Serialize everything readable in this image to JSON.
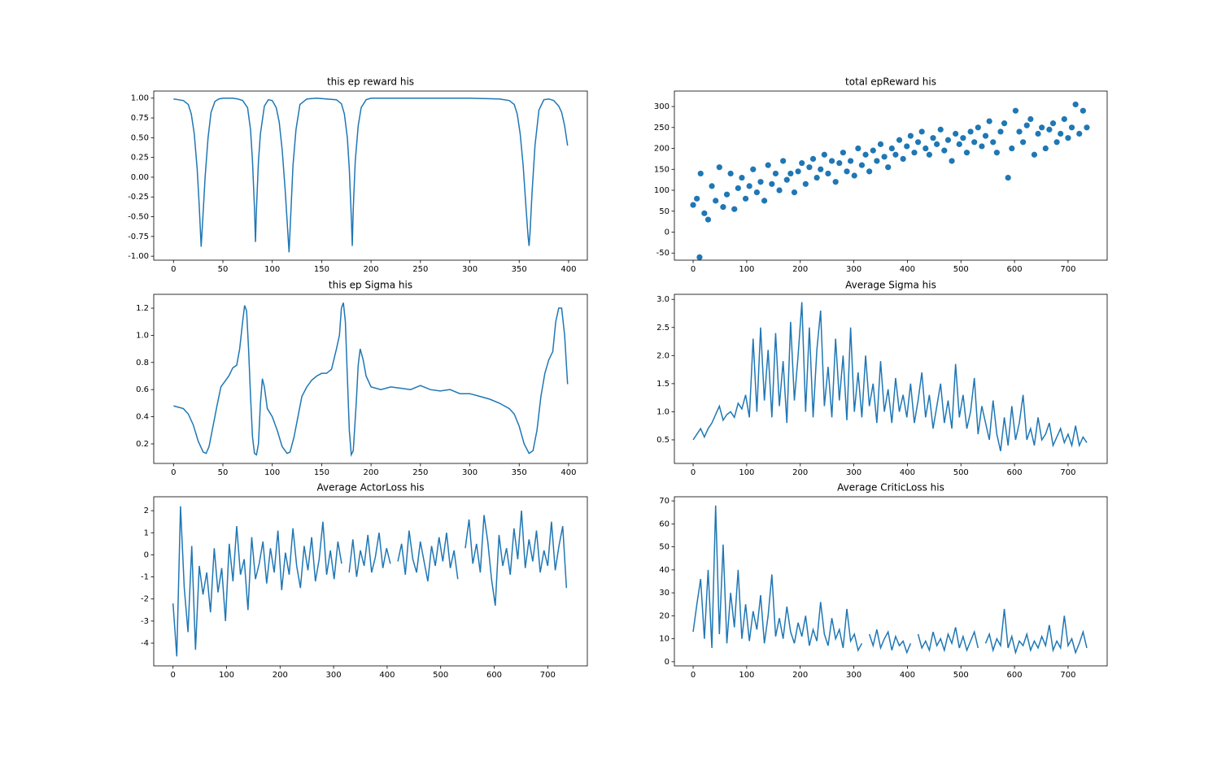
{
  "chart_data": [
    {
      "type": "line",
      "title": "this ep reward his",
      "color": "#1f77b4",
      "x": [
        0,
        5,
        10,
        15,
        18,
        21,
        24,
        26,
        28,
        30,
        32,
        35,
        38,
        42,
        46,
        50,
        55,
        60,
        65,
        70,
        75,
        78,
        80,
        82,
        83,
        84,
        86,
        88,
        92,
        96,
        100,
        104,
        107,
        110,
        113,
        115,
        117,
        119,
        121,
        124,
        128,
        135,
        145,
        155,
        165,
        170,
        173,
        176,
        178,
        180,
        181,
        182,
        184,
        187,
        190,
        195,
        200,
        220,
        250,
        300,
        330,
        340,
        345,
        348,
        351,
        354,
        357,
        359,
        360,
        361,
        363,
        366,
        370,
        375,
        380,
        385,
        390,
        393,
        396,
        399
      ],
      "values": [
        0.99,
        0.98,
        0.97,
        0.92,
        0.8,
        0.55,
        0.1,
        -0.35,
        -0.88,
        -0.45,
        0.0,
        0.5,
        0.82,
        0.96,
        0.99,
        1.0,
        1.0,
        1.0,
        0.99,
        0.97,
        0.88,
        0.6,
        0.2,
        -0.4,
        -0.82,
        -0.4,
        0.2,
        0.55,
        0.9,
        0.98,
        0.97,
        0.88,
        0.7,
        0.35,
        -0.15,
        -0.55,
        -0.95,
        -0.4,
        0.15,
        0.6,
        0.92,
        0.99,
        1.0,
        0.99,
        0.98,
        0.93,
        0.8,
        0.5,
        0.1,
        -0.5,
        -0.87,
        -0.4,
        0.2,
        0.65,
        0.88,
        0.98,
        1.0,
        1.0,
        1.0,
        1.0,
        0.99,
        0.97,
        0.92,
        0.8,
        0.55,
        0.15,
        -0.4,
        -0.75,
        -0.87,
        -0.7,
        -0.2,
        0.4,
        0.85,
        0.98,
        0.99,
        0.97,
        0.9,
        0.82,
        0.65,
        0.4
      ],
      "xlim": [
        -20,
        419
      ],
      "ylim": [
        -1.05,
        1.09
      ],
      "xticks": [
        0,
        50,
        100,
        150,
        200,
        250,
        300,
        350,
        400
      ],
      "yticks": [
        {
          "value": -1,
          "label": "-1.00"
        },
        -0.75,
        {
          "value": -0.5,
          "label": "-0.50"
        },
        -0.25,
        {
          "value": 0,
          "label": "0.00"
        },
        0.25,
        {
          "value": 0.5,
          "label": "0.50"
        },
        0.75,
        {
          "value": 1,
          "label": "1.00"
        }
      ]
    },
    {
      "type": "scatter",
      "title": "total epReward his",
      "color": "#1f77b4",
      "x": [
        0,
        7,
        14,
        21,
        28,
        35,
        42,
        49,
        56,
        63,
        70,
        77,
        84,
        91,
        98,
        105,
        112,
        119,
        126,
        133,
        140,
        147,
        154,
        161,
        168,
        175,
        182,
        189,
        196,
        203,
        210,
        217,
        224,
        231,
        238,
        245,
        252,
        259,
        266,
        273,
        280,
        287,
        294,
        301,
        308,
        315,
        322,
        329,
        336,
        343,
        350,
        357,
        364,
        371,
        378,
        385,
        392,
        399,
        406,
        413,
        420,
        427,
        434,
        441,
        448,
        455,
        462,
        469,
        476,
        483,
        490,
        497,
        504,
        511,
        518,
        525,
        532,
        539,
        546,
        553,
        560,
        567,
        574,
        581,
        588,
        595,
        602,
        609,
        616,
        623,
        630,
        637,
        644,
        651,
        658,
        665,
        672,
        679,
        686,
        693,
        700,
        707,
        714,
        721,
        728,
        735,
        12
      ],
      "values": [
        65,
        80,
        140,
        45,
        30,
        110,
        75,
        155,
        60,
        90,
        140,
        55,
        105,
        130,
        80,
        110,
        150,
        95,
        120,
        75,
        160,
        115,
        140,
        100,
        170,
        125,
        140,
        95,
        145,
        165,
        115,
        155,
        175,
        130,
        150,
        185,
        140,
        170,
        120,
        165,
        190,
        145,
        170,
        135,
        200,
        160,
        185,
        145,
        195,
        170,
        210,
        180,
        155,
        200,
        185,
        220,
        175,
        205,
        230,
        190,
        215,
        240,
        200,
        185,
        225,
        210,
        245,
        195,
        220,
        170,
        235,
        210,
        225,
        190,
        240,
        215,
        250,
        205,
        230,
        265,
        215,
        190,
        240,
        260,
        130,
        200,
        290,
        240,
        215,
        255,
        270,
        185,
        235,
        250,
        200,
        245,
        260,
        215,
        235,
        270,
        225,
        250,
        305,
        235,
        290,
        250,
        -60
      ],
      "xlim": [
        -35,
        773
      ],
      "ylim": [
        -67,
        337
      ],
      "xticks": [
        0,
        100,
        200,
        300,
        400,
        500,
        600,
        700
      ],
      "yticks": [
        -50,
        0,
        50,
        100,
        150,
        200,
        250,
        300
      ]
    },
    {
      "type": "line",
      "title": "this ep Sigma his",
      "color": "#1f77b4",
      "x": [
        0,
        5,
        10,
        15,
        20,
        25,
        30,
        33,
        36,
        40,
        44,
        48,
        52,
        56,
        60,
        64,
        67,
        70,
        72,
        74,
        76,
        78,
        80,
        82,
        84,
        86,
        88,
        90,
        92,
        95,
        100,
        105,
        110,
        115,
        118,
        122,
        126,
        130,
        135,
        140,
        145,
        150,
        155,
        160,
        165,
        168,
        170,
        172,
        174,
        176,
        178,
        180,
        182,
        185,
        187,
        189,
        192,
        195,
        200,
        210,
        220,
        230,
        240,
        250,
        260,
        270,
        280,
        290,
        300,
        310,
        320,
        330,
        340,
        345,
        350,
        355,
        360,
        364,
        368,
        372,
        376,
        380,
        384,
        387,
        390,
        393,
        396,
        399
      ],
      "values": [
        0.48,
        0.47,
        0.46,
        0.42,
        0.34,
        0.22,
        0.14,
        0.13,
        0.18,
        0.33,
        0.48,
        0.62,
        0.66,
        0.7,
        0.76,
        0.78,
        0.9,
        1.1,
        1.22,
        1.18,
        0.9,
        0.55,
        0.25,
        0.13,
        0.12,
        0.2,
        0.5,
        0.68,
        0.62,
        0.46,
        0.4,
        0.3,
        0.18,
        0.13,
        0.14,
        0.25,
        0.4,
        0.55,
        0.62,
        0.67,
        0.7,
        0.72,
        0.72,
        0.75,
        0.9,
        1.0,
        1.2,
        1.24,
        1.1,
        0.7,
        0.3,
        0.12,
        0.15,
        0.5,
        0.78,
        0.9,
        0.82,
        0.7,
        0.62,
        0.6,
        0.62,
        0.61,
        0.6,
        0.63,
        0.6,
        0.59,
        0.6,
        0.57,
        0.57,
        0.55,
        0.53,
        0.5,
        0.46,
        0.42,
        0.33,
        0.2,
        0.13,
        0.15,
        0.3,
        0.55,
        0.72,
        0.82,
        0.88,
        1.1,
        1.2,
        1.2,
        1.0,
        0.64
      ],
      "xlim": [
        -20,
        419
      ],
      "ylim": [
        0.056,
        1.302
      ],
      "xticks": [
        0,
        50,
        100,
        150,
        200,
        250,
        300,
        350,
        400
      ],
      "yticks": [
        0.2,
        0.4,
        0.6,
        0.8,
        {
          "value": 1,
          "label": "1.0"
        },
        1.2
      ]
    },
    {
      "type": "line",
      "title": "Average Sigma his",
      "color": "#1f77b4",
      "x": [
        0,
        7,
        14,
        21,
        28,
        35,
        42,
        49,
        56,
        63,
        70,
        77,
        84,
        91,
        98,
        105,
        112,
        119,
        126,
        133,
        140,
        147,
        154,
        161,
        168,
        175,
        182,
        189,
        196,
        203,
        210,
        217,
        224,
        231,
        238,
        245,
        252,
        259,
        266,
        273,
        280,
        287,
        294,
        301,
        308,
        315,
        322,
        329,
        336,
        343,
        350,
        357,
        364,
        371,
        378,
        385,
        392,
        399,
        406,
        413,
        420,
        427,
        434,
        441,
        448,
        455,
        462,
        469,
        476,
        483,
        490,
        497,
        504,
        511,
        518,
        525,
        532,
        539,
        546,
        553,
        560,
        567,
        574,
        581,
        588,
        595,
        602,
        609,
        616,
        623,
        630,
        637,
        644,
        651,
        658,
        665,
        672,
        679,
        686,
        693,
        700,
        707,
        714,
        721,
        728,
        735
      ],
      "values": [
        0.5,
        0.6,
        0.7,
        0.55,
        0.7,
        0.8,
        0.95,
        1.1,
        0.85,
        0.95,
        1.0,
        0.9,
        1.15,
        1.05,
        1.3,
        0.9,
        2.3,
        1.0,
        2.5,
        1.2,
        2.1,
        0.9,
        2.4,
        1.1,
        1.9,
        0.8,
        2.6,
        1.2,
        2.0,
        2.95,
        1.0,
        2.5,
        0.9,
        2.1,
        2.8,
        1.1,
        1.8,
        0.9,
        2.3,
        1.2,
        2.0,
        0.85,
        2.5,
        1.0,
        1.7,
        0.9,
        2.0,
        1.1,
        1.5,
        0.8,
        1.9,
        1.0,
        1.4,
        0.8,
        1.6,
        1.0,
        1.3,
        0.9,
        1.5,
        0.8,
        1.2,
        1.7,
        0.9,
        1.3,
        0.7,
        1.1,
        1.5,
        0.8,
        1.2,
        0.7,
        1.85,
        0.9,
        1.3,
        0.7,
        1.0,
        1.6,
        0.6,
        1.1,
        0.8,
        0.5,
        1.2,
        0.6,
        0.3,
        0.9,
        0.4,
        1.1,
        0.5,
        0.8,
        1.3,
        0.5,
        0.7,
        0.4,
        0.9,
        0.5,
        0.6,
        0.8,
        0.4,
        0.55,
        0.7,
        0.45,
        0.6,
        0.4,
        0.75,
        0.4,
        0.55,
        0.45
      ],
      "xlim": [
        -35,
        773
      ],
      "ylim": [
        0.08,
        3.09
      ],
      "xticks": [
        0,
        100,
        200,
        300,
        400,
        500,
        600,
        700
      ],
      "yticks": [
        0.5,
        {
          "value": 1,
          "label": "1.0"
        },
        1.5,
        {
          "value": 2,
          "label": "2.0"
        },
        2.5,
        {
          "value": 3,
          "label": "3.0"
        }
      ]
    },
    {
      "type": "line",
      "title": "Average ActorLoss his",
      "color": "#1f77b4",
      "x": [
        0,
        7,
        14,
        21,
        28,
        35,
        42,
        49,
        56,
        63,
        70,
        77,
        84,
        91,
        98,
        105,
        112,
        119,
        126,
        133,
        140,
        147,
        154,
        161,
        168,
        175,
        182,
        189,
        196,
        203,
        210,
        217,
        224,
        231,
        238,
        245,
        252,
        259,
        266,
        273,
        280,
        287,
        294,
        301,
        308,
        315,
        322,
        329,
        336,
        343,
        350,
        357,
        364,
        371,
        378,
        385,
        392,
        399,
        406,
        413,
        420,
        427,
        434,
        441,
        448,
        455,
        462,
        469,
        476,
        483,
        490,
        497,
        504,
        511,
        518,
        525,
        532,
        539,
        546,
        553,
        560,
        567,
        574,
        581,
        588,
        595,
        602,
        609,
        616,
        623,
        630,
        637,
        644,
        651,
        658,
        665,
        672,
        679,
        686,
        693,
        700,
        707,
        714,
        721,
        728,
        735
      ],
      "values": [
        -2.2,
        -4.6,
        2.2,
        -1.5,
        -3.5,
        0.4,
        -4.3,
        -0.5,
        -1.8,
        -0.8,
        -2.6,
        0.3,
        -1.7,
        -0.6,
        -3.0,
        0.5,
        -1.2,
        1.3,
        -0.9,
        -0.2,
        -2.5,
        0.8,
        -1.1,
        -0.4,
        0.6,
        -1.3,
        0.3,
        -0.8,
        1.1,
        -1.6,
        0.1,
        -0.9,
        1.2,
        -0.5,
        -1.5,
        0.4,
        -0.7,
        0.8,
        -1.2,
        -0.2,
        1.5,
        -0.9,
        0.2,
        -1.1,
        0.6,
        -0.4,
        null,
        -0.8,
        0.7,
        -1.0,
        0.2,
        -0.5,
        0.9,
        -0.8,
        -0.1,
        1.0,
        -0.6,
        0.3,
        -0.4,
        null,
        -0.3,
        0.5,
        -0.9,
        1.1,
        -0.2,
        -0.8,
        0.6,
        -0.3,
        -1.2,
        0.4,
        -0.5,
        0.8,
        -0.3,
        1.0,
        -0.6,
        0.2,
        -1.1,
        null,
        0.3,
        1.6,
        -0.4,
        0.5,
        -0.8,
        1.8,
        0.6,
        -1.1,
        -2.3,
        0.9,
        -0.5,
        0.3,
        -0.9,
        1.2,
        -0.2,
        2.0,
        -0.6,
        0.7,
        -0.3,
        1.1,
        -0.8,
        0.2,
        -0.5,
        1.5,
        -0.7,
        0.4,
        1.3,
        -1.5
      ],
      "xlim": [
        -36,
        774
      ],
      "ylim": [
        -5.03,
        2.63
      ],
      "xticks": [
        0,
        100,
        200,
        300,
        400,
        500,
        600,
        700
      ],
      "yticks": [
        -4,
        -3,
        -2,
        -1,
        0,
        1,
        2
      ]
    },
    {
      "type": "line",
      "title": "Average CriticLoss his",
      "color": "#1f77b4",
      "x": [
        0,
        7,
        14,
        21,
        28,
        35,
        42,
        49,
        56,
        63,
        70,
        77,
        84,
        91,
        98,
        105,
        112,
        119,
        126,
        133,
        140,
        147,
        154,
        161,
        168,
        175,
        182,
        189,
        196,
        203,
        210,
        217,
        224,
        231,
        238,
        245,
        252,
        259,
        266,
        273,
        280,
        287,
        294,
        301,
        308,
        315,
        322,
        329,
        336,
        343,
        350,
        357,
        364,
        371,
        378,
        385,
        392,
        399,
        406,
        413,
        420,
        427,
        434,
        441,
        448,
        455,
        462,
        469,
        476,
        483,
        490,
        497,
        504,
        511,
        518,
        525,
        532,
        539,
        546,
        553,
        560,
        567,
        574,
        581,
        588,
        595,
        602,
        609,
        616,
        623,
        630,
        637,
        644,
        651,
        658,
        665,
        672,
        679,
        686,
        693,
        700,
        707,
        714,
        721,
        728,
        735
      ],
      "values": [
        13,
        25,
        36,
        10,
        40,
        6,
        68,
        12,
        51,
        8,
        30,
        15,
        40,
        10,
        25,
        9,
        22,
        14,
        29,
        8,
        20,
        38,
        11,
        19,
        10,
        24,
        13,
        8,
        17,
        11,
        20,
        7,
        14,
        9,
        26,
        12,
        7,
        19,
        10,
        14,
        6,
        23,
        9,
        12,
        5,
        8,
        null,
        12,
        7,
        14,
        6,
        10,
        13,
        5,
        11,
        7,
        9,
        4,
        8,
        null,
        12,
        6,
        9,
        5,
        13,
        7,
        10,
        5,
        12,
        8,
        15,
        6,
        11,
        5,
        9,
        13,
        6,
        null,
        8,
        12,
        5,
        10,
        7,
        23,
        6,
        11,
        4,
        9,
        7,
        12,
        5,
        9,
        6,
        11,
        7,
        16,
        5,
        9,
        6,
        20,
        7,
        10,
        4,
        8,
        13,
        6
      ],
      "xlim": [
        -35,
        773
      ],
      "ylim": [
        -1.8,
        71.8
      ],
      "xticks": [
        0,
        100,
        200,
        300,
        400,
        500,
        600,
        700
      ],
      "yticks": [
        0,
        10,
        20,
        30,
        40,
        50,
        60,
        70
      ]
    }
  ]
}
